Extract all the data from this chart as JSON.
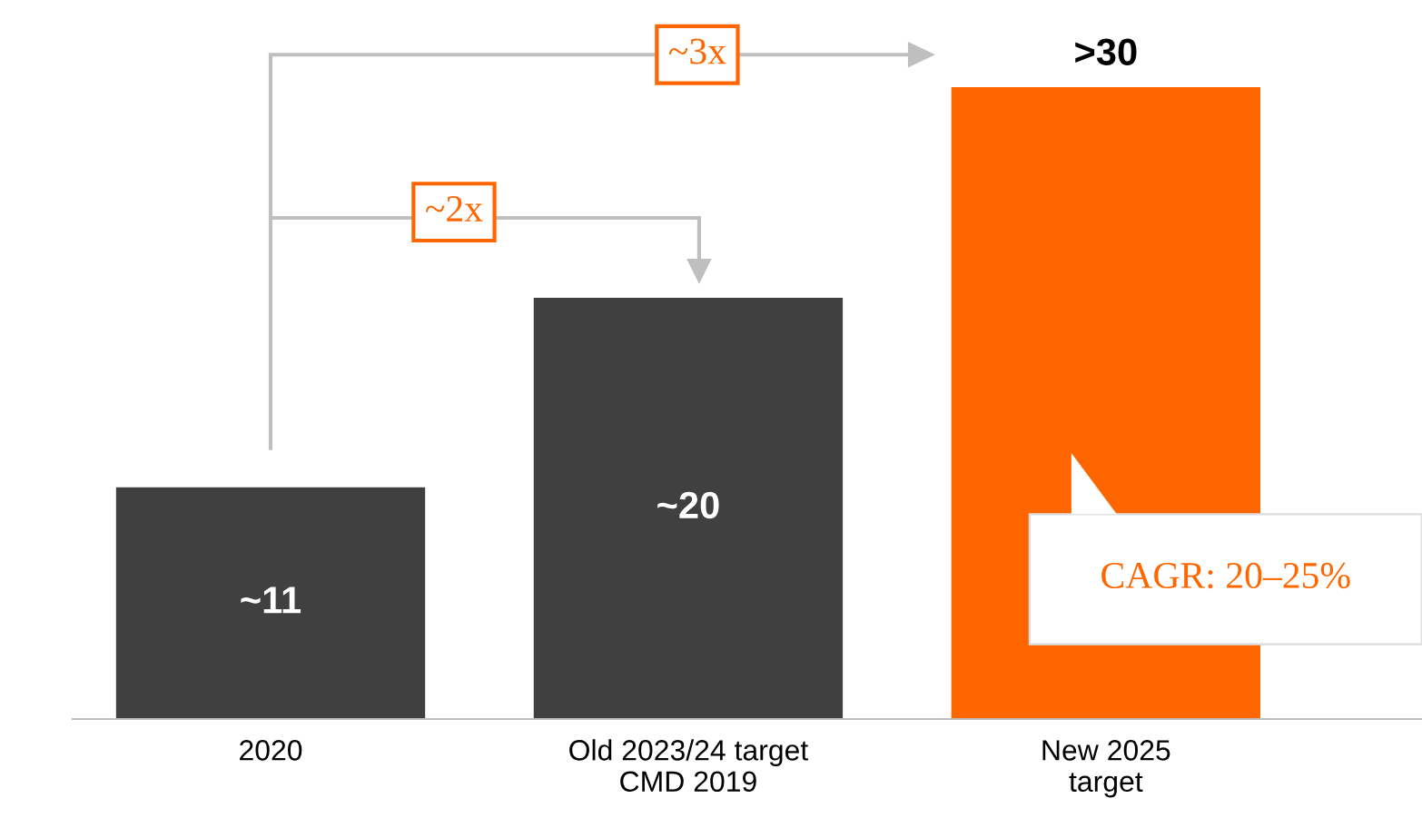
{
  "chart_data": {
    "type": "bar",
    "categories": [
      "2020",
      "Old 2023/24 target\nCMD 2019",
      "New 2025\ntarget"
    ],
    "values": [
      11,
      20,
      30
    ],
    "colors": [
      "#404040",
      "#404040",
      "#ff6600"
    ],
    "value_labels": [
      "~11",
      "~20",
      ">30"
    ],
    "annotations": [
      "~2x",
      "~3x",
      "CAGR: 20–25%"
    ]
  }
}
